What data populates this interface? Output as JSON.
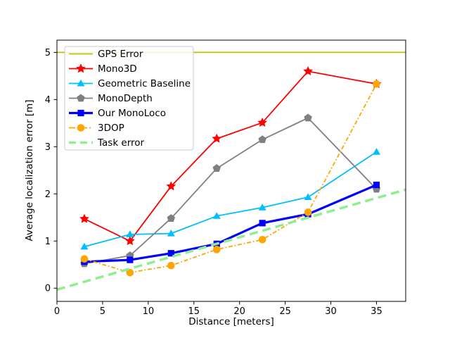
{
  "chart_data": {
    "type": "line",
    "title": "",
    "xlabel": "Distance [meters]",
    "ylabel": "Average localization error [m]",
    "xlim": [
      0,
      38.2
    ],
    "ylim": [
      -0.28,
      5.26
    ],
    "xticks": [
      0,
      5,
      10,
      15,
      20,
      25,
      30,
      35
    ],
    "yticks": [
      0,
      1,
      2,
      3,
      4,
      5
    ],
    "grid": false,
    "legend_position": "upper-left",
    "x": [
      3,
      8,
      12.5,
      17.5,
      22.5,
      27.5,
      35
    ],
    "series": [
      {
        "name": "GPS Error",
        "type": "hline",
        "y": 5.0,
        "color": "#bfbf00",
        "dash": "solid",
        "marker": "none",
        "width": 1.8
      },
      {
        "name": "Mono3D",
        "type": "line",
        "values": [
          1.47,
          1.0,
          2.16,
          3.17,
          3.51,
          4.6,
          4.33
        ],
        "color": "#ff0000",
        "dash": "solid",
        "marker": "star",
        "width": 1.8
      },
      {
        "name": "Geometric Baseline",
        "type": "line",
        "values": [
          0.88,
          1.14,
          1.16,
          1.53,
          1.71,
          1.93,
          2.89
        ],
        "color": "#00bfff",
        "dash": "solid",
        "marker": "triangle",
        "width": 1.8
      },
      {
        "name": "MonoDepth",
        "type": "line",
        "values": [
          0.52,
          0.69,
          1.48,
          2.54,
          3.15,
          3.61,
          2.1
        ],
        "color": "#808080",
        "dash": "solid",
        "marker": "pentagon",
        "width": 1.8
      },
      {
        "name": "Our MonoLoco",
        "type": "line",
        "values": [
          0.56,
          0.6,
          0.74,
          0.94,
          1.38,
          1.57,
          2.19
        ],
        "color": "#0000ff",
        "dash": "solid",
        "marker": "square",
        "width": 3.2
      },
      {
        "name": "3DOP",
        "type": "line",
        "values": [
          0.62,
          0.33,
          0.48,
          0.82,
          1.03,
          1.61,
          4.33
        ],
        "color": "#ffa500",
        "dash": "dashdot",
        "marker": "circle",
        "width": 1.8
      },
      {
        "name": "Task error",
        "type": "segment",
        "points": [
          [
            0,
            -0.03
          ],
          [
            38.2,
            2.09
          ]
        ],
        "color": "#90ee90",
        "dash": "dashed",
        "marker": "none",
        "width": 3.5
      }
    ]
  }
}
